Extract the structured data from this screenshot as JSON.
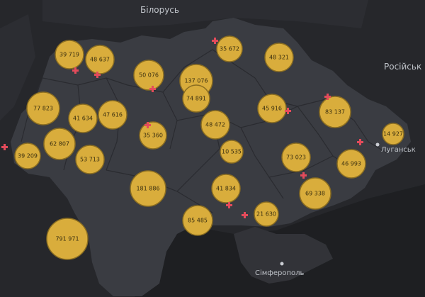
{
  "map": {
    "colors": {
      "background": "#26272b",
      "sea": "#1e1f22",
      "land_ukraine": "#3a3c42",
      "region_border": "#2a2b30",
      "neighbor_land": "#2e2f34",
      "bubble_fill": "#d9ad3c",
      "bubble_stroke": "#8a6d21",
      "marker": "#e34b5b"
    },
    "places": [
      {
        "id": "belarus",
        "text": "Білорусь"
      },
      {
        "id": "russia",
        "text": "Російськ"
      },
      {
        "id": "luhansk",
        "text": "Луганськ"
      },
      {
        "id": "simferopol",
        "text": "Сімферополь"
      }
    ],
    "bubbles": [
      {
        "region": "volyn",
        "text": "39 719"
      },
      {
        "region": "rivne",
        "text": "48 637"
      },
      {
        "region": "zhytomyr",
        "text": "50 076"
      },
      {
        "region": "kyiv-region",
        "text": "137 076"
      },
      {
        "region": "kyiv-city",
        "text": "74 891"
      },
      {
        "region": "chernihiv",
        "text": "35 672"
      },
      {
        "region": "sumy",
        "text": "48 321"
      },
      {
        "region": "lviv",
        "text": "77 823"
      },
      {
        "region": "ternopil",
        "text": "41 634"
      },
      {
        "region": "khmelnytskyi",
        "text": "47 616"
      },
      {
        "region": "vinnytsia",
        "text": "35 360"
      },
      {
        "region": "cherkasy",
        "text": "48 472"
      },
      {
        "region": "poltava",
        "text": "45 916"
      },
      {
        "region": "kharkiv",
        "text": "83 137"
      },
      {
        "region": "luhansk",
        "text": "14 927"
      },
      {
        "region": "zakarpattia",
        "text": "39 209"
      },
      {
        "region": "ivano-frankivsk",
        "text": "62 807"
      },
      {
        "region": "chernivtsi",
        "text": "53 713"
      },
      {
        "region": "kirovohrad",
        "text": "10 535"
      },
      {
        "region": "dnipropetrovsk",
        "text": "73 023"
      },
      {
        "region": "donetsk",
        "text": "46 993"
      },
      {
        "region": "odesa",
        "text": "181 886"
      },
      {
        "region": "mykolaiv",
        "text": "41 834"
      },
      {
        "region": "zaporizhzhia",
        "text": "69 338"
      },
      {
        "region": "kherson",
        "text": "21 630"
      },
      {
        "region": "kherson-south",
        "text": "85 485"
      },
      {
        "region": "odesa-south",
        "text": "791 971"
      }
    ]
  }
}
